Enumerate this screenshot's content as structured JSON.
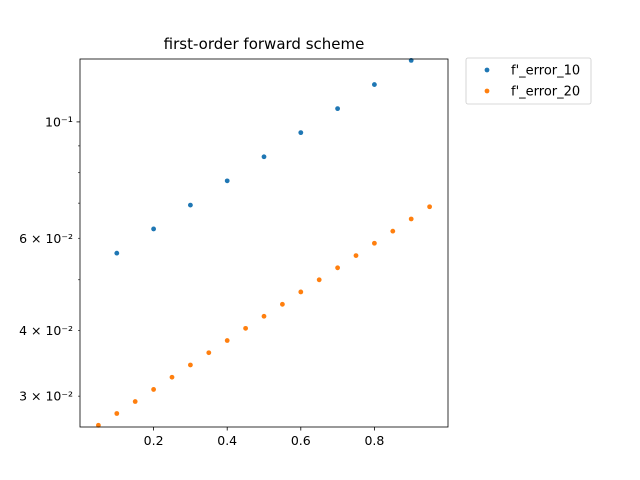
{
  "chart_data": {
    "type": "scatter",
    "title": "first-order forward scheme",
    "xlabel": "",
    "ylabel": "",
    "xlim": [
      0.0,
      1.0
    ],
    "ylim": [
      0.0262,
      0.1318
    ],
    "y_scale": "log",
    "grid": false,
    "legend_position": "outside-top-right",
    "x_ticks": [
      {
        "value": 0.2,
        "label": "0.2"
      },
      {
        "value": 0.4,
        "label": "0.4"
      },
      {
        "value": 0.6,
        "label": "0.6"
      },
      {
        "value": 0.8,
        "label": "0.8"
      }
    ],
    "y_major_ticks": [
      {
        "value": 0.1,
        "label": "10⁻¹"
      }
    ],
    "y_minor_ticks": [
      {
        "value": 0.03,
        "label": "3 × 10⁻²"
      },
      {
        "value": 0.04,
        "label": "4 × 10⁻²"
      },
      {
        "value": 0.06,
        "label": "6 × 10⁻²"
      }
    ],
    "series": [
      {
        "name": "f'_error_10",
        "color": "#1f77b4",
        "x": [
          0.1,
          0.2,
          0.3,
          0.4,
          0.5,
          0.6,
          0.7,
          0.8,
          0.9
        ],
        "y": [
          0.0562,
          0.0625,
          0.0694,
          0.0772,
          0.0858,
          0.0954,
          0.106,
          0.1178,
          0.131
        ]
      },
      {
        "name": "f'_error_20",
        "color": "#ff7f0e",
        "x": [
          0.05,
          0.1,
          0.15,
          0.2,
          0.25,
          0.3,
          0.35,
          0.4,
          0.45,
          0.5,
          0.55,
          0.6,
          0.65,
          0.7,
          0.75,
          0.8,
          0.85,
          0.9,
          0.95
        ],
        "y": [
          0.0264,
          0.0278,
          0.0293,
          0.0309,
          0.0326,
          0.0344,
          0.0363,
          0.0383,
          0.0404,
          0.0426,
          0.0449,
          0.0474,
          0.05,
          0.0527,
          0.0556,
          0.0587,
          0.0619,
          0.0653,
          0.0689
        ]
      }
    ]
  }
}
